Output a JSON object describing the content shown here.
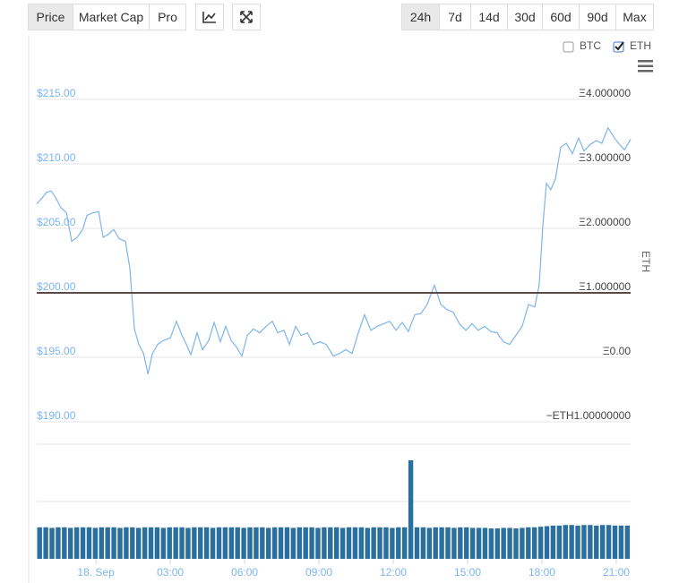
{
  "toolbar": {
    "buttons": [
      "Price",
      "Market Cap",
      "Pro"
    ],
    "active_index": 0
  },
  "ranges": {
    "buttons": [
      "24h",
      "7d",
      "14d",
      "30d",
      "60d",
      "90d",
      "Max"
    ],
    "active_index": 0
  },
  "legend": [
    {
      "label": "BTC",
      "checked": false
    },
    {
      "label": "ETH",
      "checked": true
    }
  ],
  "chart_data": {
    "type": "line",
    "y2_label": "ETH",
    "xlim": [
      -2.39,
      21.58
    ],
    "xticks": [
      {
        "value": 0,
        "label": "18. Sep"
      },
      {
        "value": 3,
        "label": "03:00"
      },
      {
        "value": 6,
        "label": "06:00"
      },
      {
        "value": 9,
        "label": "09:00"
      },
      {
        "value": 12,
        "label": "12:00"
      },
      {
        "value": 15,
        "label": "15:00"
      },
      {
        "value": 18,
        "label": "18:00"
      },
      {
        "value": 21,
        "label": "21:00"
      }
    ],
    "ylim": [
      190,
      215
    ],
    "yticks": [
      {
        "value": 190,
        "label": "$190.00"
      },
      {
        "value": 195,
        "label": "$195.00"
      },
      {
        "value": 200,
        "label": "$200.00"
      },
      {
        "value": 205,
        "label": "$205.00"
      },
      {
        "value": 210,
        "label": "$210.00"
      },
      {
        "value": 215,
        "label": "$215.00"
      }
    ],
    "y2lim": [
      -1,
      4
    ],
    "y2ticks": [
      {
        "value": -1,
        "label": "−ETH1.00000000"
      },
      {
        "value": 0,
        "label": "Ξ0.00"
      },
      {
        "value": 1,
        "label": "Ξ1.000000"
      },
      {
        "value": 2,
        "label": "Ξ2.000000"
      },
      {
        "value": 3,
        "label": "Ξ3.000000"
      },
      {
        "value": 4,
        "label": "Ξ4.000000"
      }
    ],
    "grid": true,
    "series": [
      {
        "color": "#7cb5ec",
        "x": [
          -2.39,
          -2.2,
          -1.99,
          -1.81,
          -1.63,
          -1.41,
          -1.19,
          -0.98,
          -0.76,
          -0.54,
          -0.36,
          -0.14,
          0.11,
          0.29,
          0.47,
          0.72,
          0.94,
          1.19,
          1.37,
          1.55,
          1.73,
          1.92,
          2.1,
          2.28,
          2.49,
          2.71,
          3.0,
          3.25,
          3.47,
          3.65,
          3.83,
          4.08,
          4.3,
          4.55,
          4.77,
          5.02,
          5.24,
          5.46,
          5.67,
          5.89,
          6.11,
          6.36,
          6.61,
          6.87,
          7.12,
          7.34,
          7.59,
          7.81,
          8.06,
          8.28,
          8.53,
          8.78,
          9.04,
          9.29,
          9.58,
          9.83,
          10.08,
          10.34,
          10.59,
          10.84,
          11.1,
          11.35,
          11.6,
          11.86,
          12.11,
          12.36,
          12.61,
          12.87,
          13.12,
          13.37,
          13.66,
          13.92,
          14.17,
          14.42,
          14.67,
          14.93,
          15.18,
          15.43,
          15.69,
          15.94,
          16.19,
          16.45,
          16.7,
          16.95,
          17.2,
          17.46,
          17.71,
          17.89,
          18.04,
          18.18,
          18.36,
          18.54,
          18.76,
          18.98,
          19.23,
          19.48,
          19.7,
          19.95,
          20.2,
          20.42,
          20.67,
          20.93,
          21.14,
          21.33,
          21.58
        ],
        "values": [
          206.9,
          207.3,
          207.8,
          207.9,
          207.4,
          206.6,
          206.2,
          204.0,
          204.3,
          204.9,
          206.0,
          206.2,
          206.3,
          204.3,
          204.5,
          204.9,
          204.2,
          204.0,
          201.9,
          197.2,
          196.0,
          195.3,
          193.7,
          195.3,
          196.0,
          196.3,
          196.5,
          197.8,
          196.7,
          196.0,
          195.2,
          196.9,
          195.6,
          196.3,
          197.7,
          196.2,
          197.4,
          196.3,
          195.8,
          195.1,
          196.7,
          197.2,
          196.9,
          197.4,
          197.8,
          196.9,
          197.1,
          196.0,
          197.4,
          196.7,
          196.9,
          196.0,
          196.2,
          196.0,
          195.1,
          195.3,
          195.6,
          195.3,
          196.9,
          198.3,
          197.1,
          197.4,
          197.6,
          197.8,
          197.1,
          197.7,
          197.0,
          198.3,
          198.4,
          199.1,
          200.6,
          199.1,
          198.7,
          198.5,
          197.6,
          197.1,
          197.6,
          197.1,
          197.4,
          197.0,
          196.9,
          196.2,
          196.0,
          196.7,
          197.4,
          199.1,
          198.9,
          200.6,
          205.3,
          208.5,
          208.0,
          208.8,
          211.3,
          211.6,
          210.8,
          212.0,
          211.0,
          211.5,
          211.8,
          211.6,
          212.8,
          212.0,
          211.5,
          211.1,
          211.9
        ]
      },
      {
        "color": "#5a4a4a",
        "axis": "y2",
        "x": [
          -2.39,
          21.58
        ],
        "values": [
          1,
          1
        ]
      }
    ],
    "volume": {
      "color": "#2b6f9e",
      "ylim": [
        0,
        2
      ],
      "gridlines": [
        1,
        2
      ],
      "values": [
        0.55,
        0.55,
        0.54,
        0.55,
        0.55,
        0.54,
        0.55,
        0.55,
        0.55,
        0.54,
        0.55,
        0.55,
        0.55,
        0.54,
        0.55,
        0.55,
        0.54,
        0.55,
        0.55,
        0.55,
        0.54,
        0.55,
        0.55,
        0.55,
        0.54,
        0.55,
        0.55,
        0.55,
        0.54,
        0.55,
        0.55,
        0.55,
        0.55,
        0.54,
        0.55,
        0.55,
        0.55,
        0.54,
        0.55,
        0.55,
        0.55,
        0.54,
        0.55,
        0.55,
        0.55,
        0.54,
        0.55,
        0.55,
        0.55,
        0.54,
        0.55,
        0.55,
        0.55,
        0.54,
        0.55,
        0.55,
        0.55,
        0.54,
        0.55,
        0.55,
        1.72,
        0.55,
        0.55,
        0.54,
        0.55,
        0.55,
        0.55,
        0.54,
        0.55,
        0.55,
        0.54,
        0.54,
        0.54,
        0.53,
        0.53,
        0.54,
        0.54,
        0.53,
        0.54,
        0.55,
        0.55,
        0.56,
        0.57,
        0.58,
        0.58,
        0.59,
        0.59,
        0.58,
        0.59,
        0.59,
        0.58,
        0.59,
        0.59,
        0.58,
        0.58,
        0.58
      ]
    }
  }
}
